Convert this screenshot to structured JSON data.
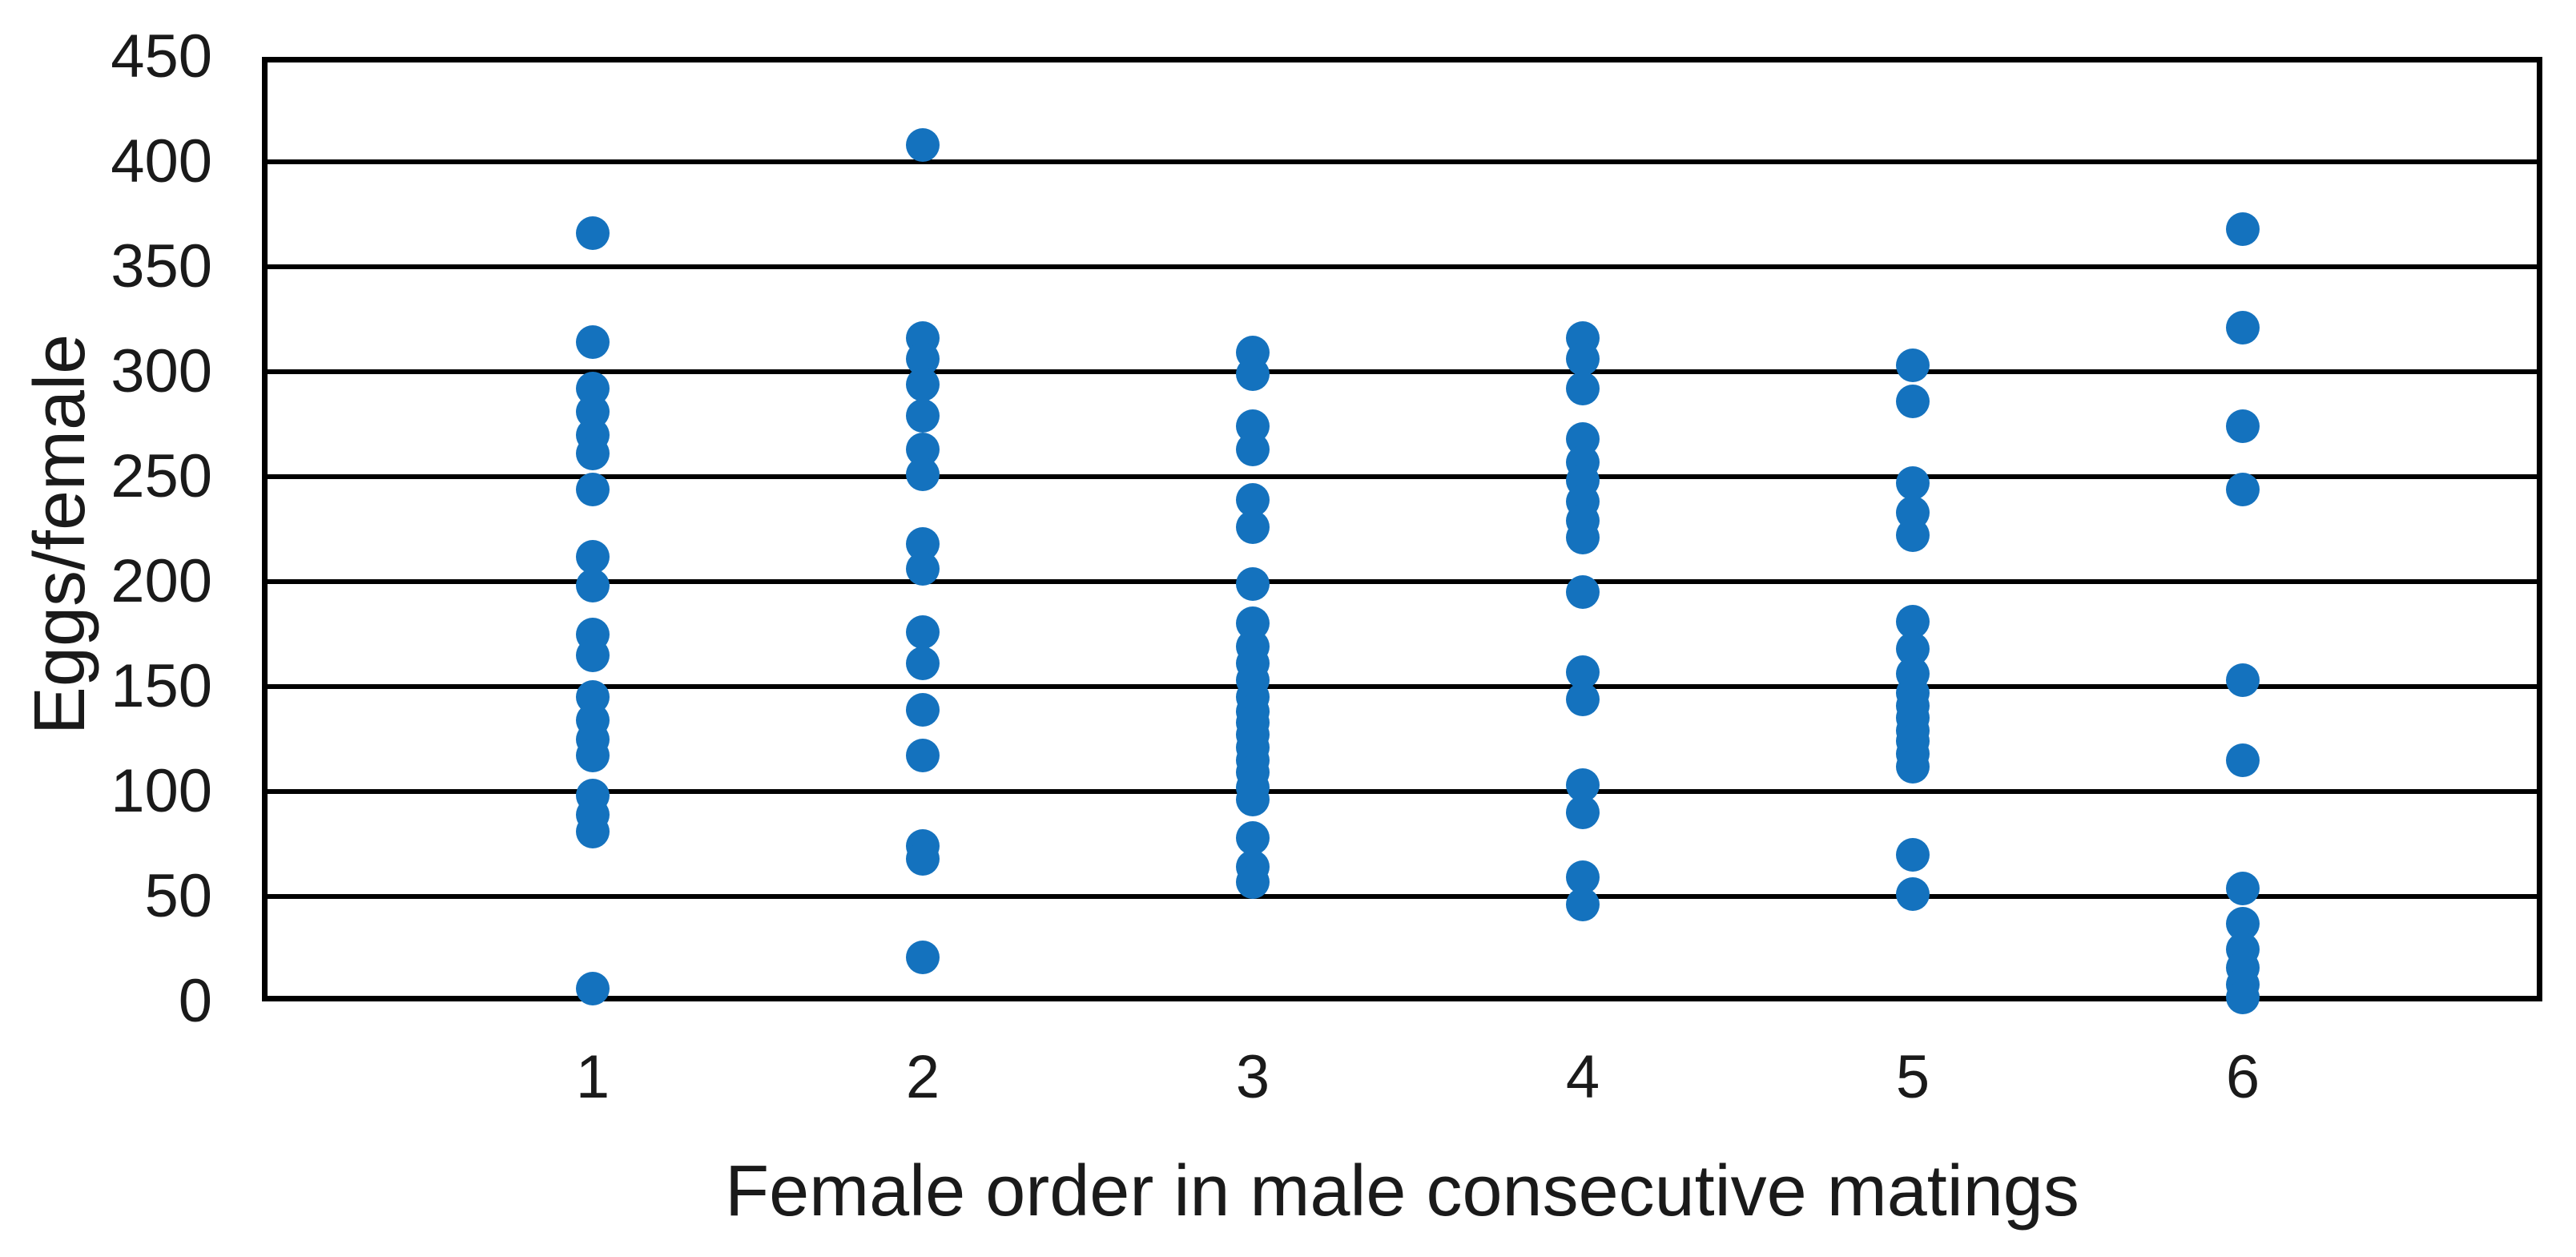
{
  "chart_data": {
    "type": "scatter",
    "title": "",
    "xlabel": "Female order in male consecutive matings",
    "ylabel": "Eggs/female",
    "ylim": [
      0,
      450
    ],
    "ytick_interval": 50,
    "yticks": [
      0,
      50,
      100,
      150,
      200,
      250,
      300,
      350,
      400,
      450
    ],
    "grid": "horizontal-only",
    "legend": "none",
    "marker_color": "#1472BE",
    "categories": [
      "1",
      "2",
      "3",
      "4",
      "5",
      "6"
    ],
    "series": [
      {
        "name": "Eggs per female",
        "points_by_category": {
          "1": [
            366,
            314,
            292,
            281,
            270,
            261,
            244,
            212,
            198,
            175,
            165,
            145,
            134,
            125,
            117,
            98,
            89,
            81,
            6
          ],
          "2": [
            408,
            316,
            306,
            294,
            279,
            263,
            251,
            218,
            206,
            176,
            161,
            139,
            117,
            74,
            68,
            21
          ],
          "3": [
            309,
            299,
            274,
            263,
            239,
            226,
            199,
            180,
            169,
            161,
            153,
            145,
            138,
            133,
            127,
            121,
            115,
            109,
            102,
            96,
            78,
            64,
            57
          ],
          "4": [
            316,
            306,
            292,
            268,
            257,
            248,
            238,
            229,
            221,
            195,
            157,
            144,
            103,
            90,
            59,
            46
          ],
          "5": [
            303,
            286,
            247,
            233,
            222,
            181,
            168,
            156,
            147,
            141,
            135,
            129,
            124,
            118,
            112,
            70,
            51
          ],
          "6": [
            368,
            321,
            274,
            244,
            153,
            115,
            54,
            37,
            25,
            16,
            8,
            2
          ]
        }
      }
    ]
  }
}
